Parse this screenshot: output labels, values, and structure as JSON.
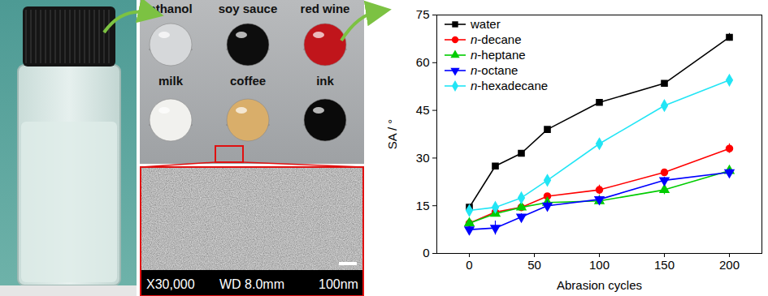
{
  "chart_data": {
    "type": "line",
    "x_label": "Abrasion cycles",
    "y_label": "SA / °",
    "x": [
      0,
      20,
      40,
      60,
      100,
      150,
      200
    ],
    "series": [
      {
        "name": "water",
        "color": "#000000",
        "marker": "square",
        "values": [
          14.5,
          27.5,
          31.5,
          39,
          47.5,
          53.5,
          68
        ],
        "errors": [
          0.8,
          0.6,
          0.6,
          0.6,
          0.6,
          0.6,
          1.2
        ]
      },
      {
        "name": "n-decane",
        "color": "#ff0000",
        "marker": "circle",
        "values": [
          9.5,
          13,
          14.5,
          18,
          20,
          25.5,
          33
        ],
        "errors": [
          0.8,
          1.2,
          1.0,
          0.6,
          1.5,
          0.8,
          1.5
        ]
      },
      {
        "name": "n-heptane",
        "color": "#00cc00",
        "marker": "triangle",
        "values": [
          9.5,
          12.5,
          14.5,
          16,
          16.5,
          20,
          26
        ],
        "errors": [
          0.8,
          0.8,
          0.8,
          0.8,
          1.0,
          1.5,
          1.2
        ]
      },
      {
        "name": "n-octane",
        "color": "#0000ff",
        "marker": "triangle-down",
        "values": [
          7.5,
          8,
          11.5,
          15,
          17,
          23,
          25.5
        ],
        "errors": [
          1.0,
          2.2,
          1.0,
          1.5,
          1.0,
          1.0,
          1.2
        ]
      },
      {
        "name": "n-hexadecane",
        "color": "#22e5f5",
        "marker": "diamond",
        "values": [
          13.5,
          14.5,
          17.5,
          23,
          34.5,
          46.5,
          54.5
        ],
        "errors": [
          0.6,
          1.2,
          0.8,
          1.2,
          0.8,
          0.8,
          0.8
        ]
      }
    ],
    "xlim": [
      -25,
      225
    ],
    "xticks": [
      0,
      50,
      100,
      150,
      200
    ],
    "ylim": [
      0,
      75
    ],
    "yticks": [
      0,
      15,
      30,
      45,
      60,
      75
    ],
    "grid": false,
    "legend": "top-left"
  },
  "droplet_photo": {
    "labels": [
      "ethanol",
      "soy sauce",
      "red wine",
      "milk",
      "coffee",
      "ink"
    ]
  },
  "sem_image": {
    "texts": [
      "X30,000",
      "WD 8.0mm",
      "100nm"
    ]
  }
}
